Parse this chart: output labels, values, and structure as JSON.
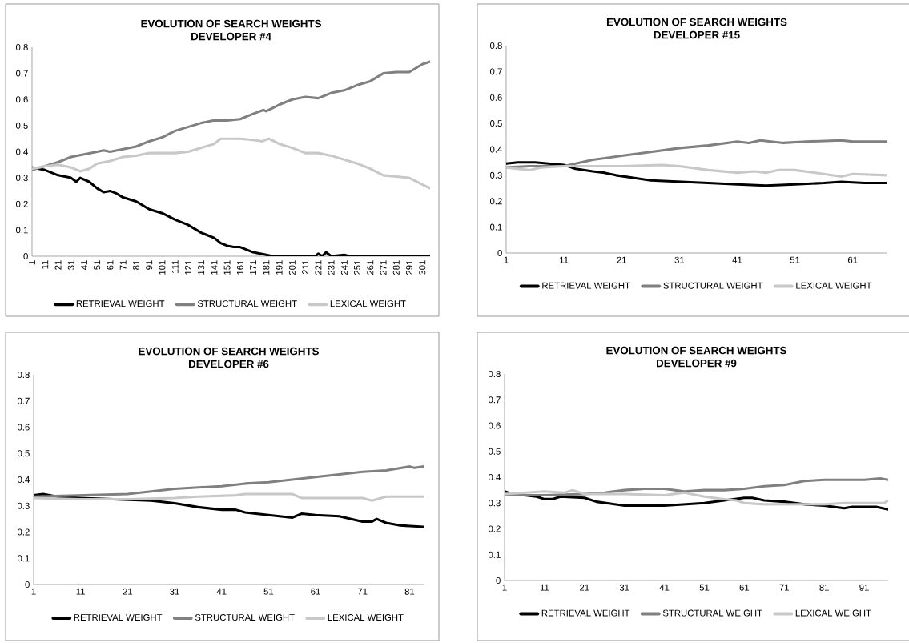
{
  "chart_data": [
    {
      "type": "line",
      "title": "EVOLUTION OF SEARCH WEIGHTS",
      "subtitle": "DEVELOPER #4",
      "xlim": [
        1,
        307
      ],
      "xticks": [
        1,
        11,
        21,
        31,
        41,
        51,
        61,
        71,
        81,
        91,
        101,
        111,
        121,
        131,
        141,
        151,
        161,
        171,
        181,
        191,
        201,
        211,
        221,
        231,
        241,
        251,
        261,
        271,
        281,
        291,
        301
      ],
      "ylim": [
        0,
        0.8
      ],
      "yticks": [
        0,
        0.1,
        0.2,
        0.3,
        0.4,
        0.5,
        0.6,
        0.7,
        0.8
      ],
      "legend": "bottom",
      "series": [
        {
          "name": "RETRIEVAL WEIGHT",
          "color": "#000000",
          "x": [
            1,
            11,
            21,
            31,
            35,
            38,
            45,
            51,
            56,
            61,
            66,
            71,
            81,
            91,
            101,
            111,
            116,
            121,
            131,
            141,
            146,
            151,
            156,
            161,
            171,
            181,
            186,
            219,
            221,
            224,
            227,
            231,
            241,
            245,
            307
          ],
          "values": [
            0.34,
            0.33,
            0.31,
            0.3,
            0.285,
            0.3,
            0.285,
            0.26,
            0.245,
            0.25,
            0.24,
            0.225,
            0.21,
            0.18,
            0.165,
            0.14,
            0.13,
            0.12,
            0.09,
            0.07,
            0.05,
            0.04,
            0.035,
            0.035,
            0.015,
            0.005,
            0,
            0,
            0.01,
            0,
            0.015,
            0,
            0.005,
            0,
            0
          ]
        },
        {
          "name": "STRUCTURAL WEIGHT",
          "color": "#808080",
          "x": [
            1,
            11,
            21,
            31,
            41,
            51,
            56,
            61,
            71,
            81,
            91,
            101,
            111,
            121,
            131,
            141,
            151,
            161,
            171,
            179,
            181,
            191,
            201,
            211,
            221,
            231,
            241,
            251,
            261,
            271,
            281,
            291,
            301,
            307
          ],
          "values": [
            0.33,
            0.345,
            0.36,
            0.38,
            0.39,
            0.4,
            0.405,
            0.4,
            0.41,
            0.42,
            0.44,
            0.455,
            0.48,
            0.495,
            0.51,
            0.52,
            0.52,
            0.525,
            0.545,
            0.56,
            0.555,
            0.58,
            0.6,
            0.61,
            0.605,
            0.625,
            0.635,
            0.655,
            0.67,
            0.7,
            0.705,
            0.705,
            0.735,
            0.745
          ]
        },
        {
          "name": "LEXICAL WEIGHT",
          "color": "#c8c8c8",
          "x": [
            1,
            11,
            21,
            31,
            38,
            45,
            51,
            61,
            71,
            81,
            91,
            101,
            111,
            121,
            131,
            141,
            146,
            151,
            161,
            171,
            178,
            183,
            191,
            201,
            211,
            221,
            231,
            241,
            251,
            261,
            271,
            281,
            291,
            301,
            307
          ],
          "values": [
            0.335,
            0.345,
            0.35,
            0.34,
            0.325,
            0.335,
            0.355,
            0.365,
            0.38,
            0.385,
            0.395,
            0.395,
            0.395,
            0.4,
            0.415,
            0.43,
            0.45,
            0.45,
            0.45,
            0.445,
            0.44,
            0.45,
            0.43,
            0.415,
            0.395,
            0.395,
            0.385,
            0.37,
            0.355,
            0.335,
            0.31,
            0.305,
            0.3,
            0.275,
            0.26
          ]
        }
      ]
    },
    {
      "type": "line",
      "title": "EVOLUTION OF SEARCH WEIGHTS",
      "subtitle": "DEVELOPER #15",
      "xlim": [
        1,
        67
      ],
      "xticks": [
        1,
        11,
        21,
        31,
        41,
        51,
        61
      ],
      "ylim": [
        0,
        0.8
      ],
      "yticks": [
        0,
        0.1,
        0.2,
        0.3,
        0.4,
        0.5,
        0.6,
        0.7,
        0.8
      ],
      "legend": "bottom",
      "series": [
        {
          "name": "RETRIEVAL WEIGHT",
          "color": "#000000",
          "x": [
            1,
            3,
            6,
            11,
            13,
            16,
            18,
            20,
            23,
            26,
            31,
            36,
            41,
            46,
            51,
            56,
            59,
            63,
            67
          ],
          "values": [
            0.345,
            0.35,
            0.35,
            0.34,
            0.325,
            0.315,
            0.31,
            0.3,
            0.29,
            0.28,
            0.275,
            0.27,
            0.265,
            0.26,
            0.265,
            0.27,
            0.275,
            0.27,
            0.27
          ]
        },
        {
          "name": "STRUCTURAL WEIGHT",
          "color": "#808080",
          "x": [
            1,
            5,
            11,
            16,
            21,
            26,
            31,
            36,
            41,
            43,
            45,
            49,
            53,
            59,
            61,
            67
          ],
          "values": [
            0.33,
            0.335,
            0.335,
            0.36,
            0.375,
            0.39,
            0.405,
            0.415,
            0.43,
            0.425,
            0.435,
            0.425,
            0.43,
            0.435,
            0.43,
            0.43
          ]
        },
        {
          "name": "LEXICAL WEIGHT",
          "color": "#c8c8c8",
          "x": [
            1,
            5,
            7,
            11,
            21,
            28,
            31,
            36,
            41,
            44,
            46,
            48,
            51,
            56,
            59,
            61,
            67
          ],
          "values": [
            0.33,
            0.32,
            0.33,
            0.335,
            0.335,
            0.34,
            0.335,
            0.32,
            0.31,
            0.315,
            0.31,
            0.32,
            0.32,
            0.305,
            0.295,
            0.305,
            0.3
          ]
        }
      ]
    },
    {
      "type": "line",
      "title": "EVOLUTION OF SEARCH WEIGHTS",
      "subtitle": "DEVELOPER #6",
      "xlim": [
        1,
        84
      ],
      "xticks": [
        1,
        11,
        21,
        31,
        41,
        51,
        61,
        71,
        81
      ],
      "ylim": [
        0,
        0.8
      ],
      "yticks": [
        0,
        0.1,
        0.2,
        0.3,
        0.4,
        0.5,
        0.6,
        0.7,
        0.8
      ],
      "legend": "bottom",
      "series": [
        {
          "name": "RETRIEVAL WEIGHT",
          "color": "#000000",
          "x": [
            1,
            3,
            6,
            11,
            26,
            31,
            36,
            41,
            44,
            46,
            51,
            56,
            58,
            61,
            66,
            71,
            73,
            74,
            76,
            79,
            84
          ],
          "values": [
            0.34,
            0.345,
            0.335,
            0.33,
            0.32,
            0.31,
            0.295,
            0.285,
            0.285,
            0.275,
            0.265,
            0.255,
            0.27,
            0.265,
            0.26,
            0.24,
            0.24,
            0.25,
            0.235,
            0.225,
            0.22
          ]
        },
        {
          "name": "STRUCTURAL WEIGHT",
          "color": "#808080",
          "x": [
            1,
            11,
            21,
            31,
            41,
            46,
            51,
            56,
            61,
            66,
            71,
            76,
            81,
            82,
            84
          ],
          "values": [
            0.335,
            0.34,
            0.345,
            0.365,
            0.375,
            0.385,
            0.39,
            0.4,
            0.41,
            0.42,
            0.43,
            0.435,
            0.45,
            0.445,
            0.45
          ]
        },
        {
          "name": "LEXICAL WEIGHT",
          "color": "#c8c8c8",
          "x": [
            1,
            11,
            21,
            31,
            36,
            44,
            46,
            56,
            58,
            66,
            71,
            73,
            76,
            84
          ],
          "values": [
            0.33,
            0.325,
            0.325,
            0.33,
            0.335,
            0.34,
            0.345,
            0.345,
            0.33,
            0.33,
            0.33,
            0.32,
            0.335,
            0.335
          ]
        }
      ]
    },
    {
      "type": "line",
      "title": "EVOLUTION OF SEARCH WEIGHTS",
      "subtitle": "DEVELOPER #9",
      "xlim": [
        1,
        97
      ],
      "xticks": [
        1,
        11,
        21,
        31,
        41,
        51,
        61,
        71,
        81,
        91
      ],
      "ylim": [
        0,
        0.8
      ],
      "yticks": [
        0,
        0.1,
        0.2,
        0.3,
        0.4,
        0.5,
        0.6,
        0.7,
        0.8
      ],
      "legend": "bottom",
      "series": [
        {
          "name": "RETRIEVAL WEIGHT",
          "color": "#000000",
          "x": [
            1,
            3,
            6,
            9,
            11,
            13,
            15,
            21,
            24,
            31,
            36,
            41,
            46,
            51,
            56,
            61,
            63,
            66,
            71,
            76,
            81,
            86,
            88,
            91,
            94,
            97
          ],
          "values": [
            0.345,
            0.335,
            0.33,
            0.325,
            0.315,
            0.315,
            0.325,
            0.32,
            0.305,
            0.29,
            0.29,
            0.29,
            0.295,
            0.3,
            0.31,
            0.32,
            0.32,
            0.31,
            0.305,
            0.295,
            0.29,
            0.28,
            0.285,
            0.285,
            0.285,
            0.275
          ]
        },
        {
          "name": "STRUCTURAL WEIGHT",
          "color": "#808080",
          "x": [
            1,
            11,
            21,
            26,
            31,
            36,
            41,
            46,
            51,
            56,
            61,
            66,
            71,
            76,
            81,
            86,
            91,
            95,
            97
          ],
          "values": [
            0.33,
            0.33,
            0.335,
            0.34,
            0.35,
            0.355,
            0.355,
            0.345,
            0.35,
            0.35,
            0.355,
            0.365,
            0.37,
            0.385,
            0.39,
            0.39,
            0.39,
            0.395,
            0.39
          ]
        },
        {
          "name": "LEXICAL WEIGHT",
          "color": "#c8c8c8",
          "x": [
            1,
            11,
            16,
            18,
            21,
            31,
            41,
            46,
            51,
            56,
            59,
            61,
            66,
            71,
            81,
            86,
            91,
            96,
            97
          ],
          "values": [
            0.335,
            0.345,
            0.34,
            0.35,
            0.335,
            0.335,
            0.33,
            0.34,
            0.325,
            0.315,
            0.31,
            0.3,
            0.295,
            0.295,
            0.295,
            0.3,
            0.3,
            0.3,
            0.31
          ]
        }
      ]
    }
  ]
}
